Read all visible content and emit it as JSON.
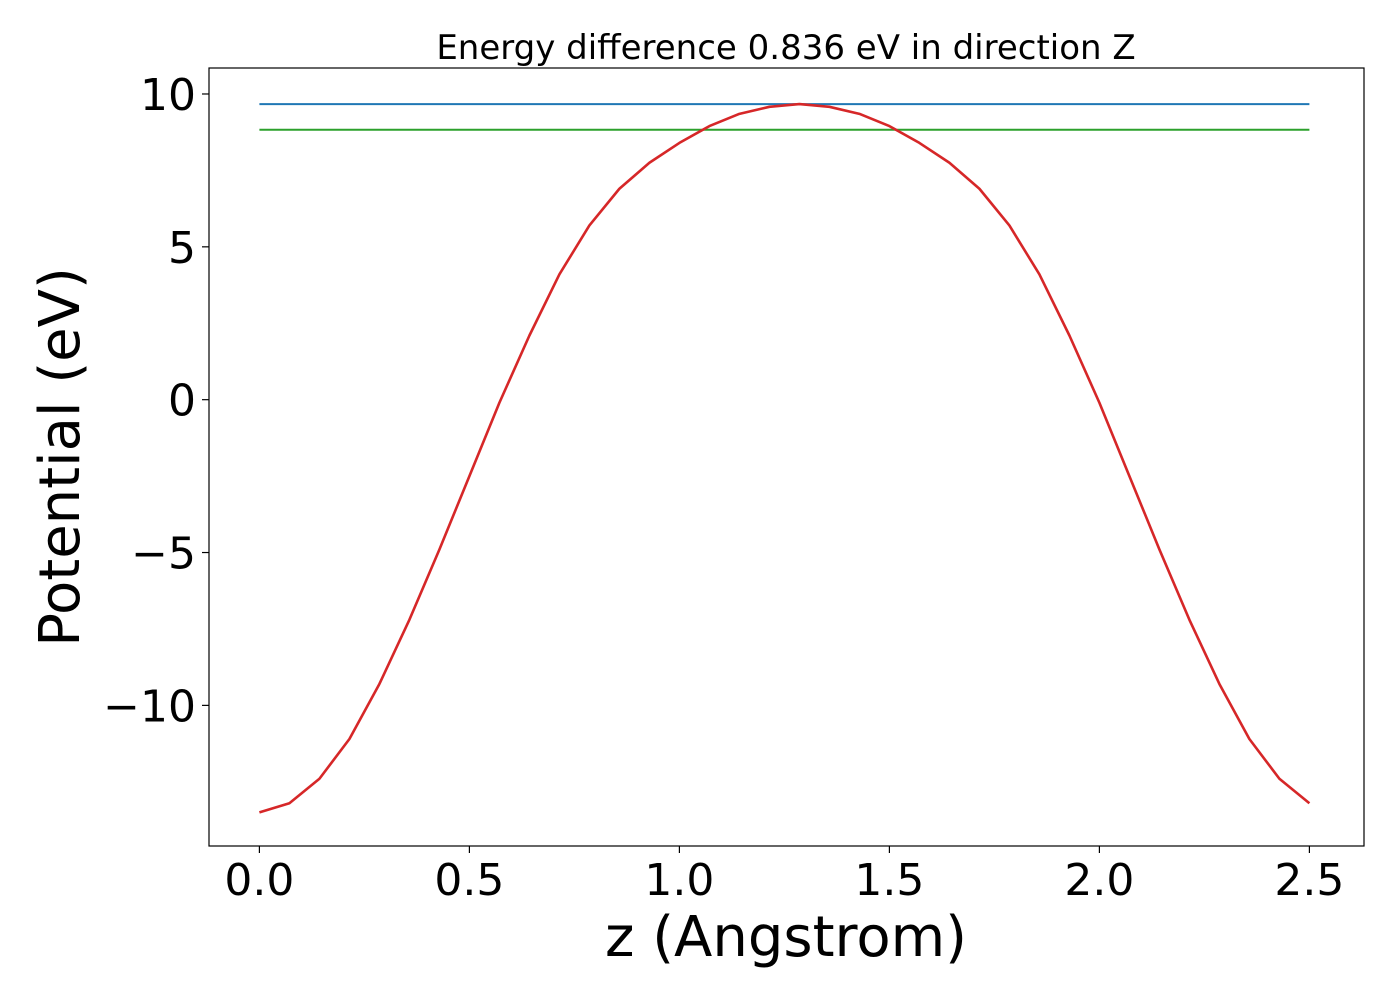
{
  "chart_data": {
    "type": "line",
    "title": "Energy difference 0.836 eV in direction Z",
    "xlabel": "z (Angstrom)",
    "ylabel": "Potential (eV)",
    "xlim": [
      -0.12,
      2.63
    ],
    "ylim": [
      -14.6,
      10.85
    ],
    "grid": false,
    "legend": "none",
    "xticks": [
      0.0,
      0.5,
      1.0,
      1.5,
      2.0,
      2.5
    ],
    "xtick_labels": [
      "0.0",
      "0.5",
      "1.0",
      "1.5",
      "2.0",
      "2.5"
    ],
    "yticks": [
      -10,
      -5,
      0,
      5,
      10
    ],
    "ytick_labels": [
      "−10",
      "−5",
      "0",
      "5",
      "10"
    ],
    "series": [
      {
        "color": "#1f77b4",
        "x": [
          0.0,
          2.5
        ],
        "y": [
          9.67,
          9.67
        ]
      },
      {
        "color": "#2ca02c",
        "x": [
          0.0,
          2.5
        ],
        "y": [
          8.83,
          8.83
        ]
      },
      {
        "color": "#d62728",
        "x": [
          0.0,
          0.0714,
          0.1429,
          0.2143,
          0.2857,
          0.3571,
          0.4286,
          0.5,
          0.5714,
          0.6429,
          0.7143,
          0.7857,
          0.8571,
          0.9286,
          1.0,
          1.0714,
          1.1429,
          1.2143,
          1.2857,
          1.3571,
          1.4286,
          1.5,
          1.5714,
          1.6429,
          1.7143,
          1.7857,
          1.8571,
          1.9286,
          2.0,
          2.0714,
          2.1429,
          2.2143,
          2.2857,
          2.3571,
          2.4286,
          2.5
        ],
        "y": [
          -13.5,
          -13.2,
          -12.4,
          -11.1,
          -9.3,
          -7.2,
          -4.9,
          -2.5,
          -0.1,
          2.1,
          4.1,
          5.7,
          6.9,
          7.75,
          8.4,
          8.95,
          9.35,
          9.58,
          9.67,
          9.58,
          9.35,
          8.95,
          8.4,
          7.75,
          6.9,
          5.7,
          4.1,
          2.1,
          -0.1,
          -2.5,
          -4.9,
          -7.2,
          -9.3,
          -11.1,
          -12.4,
          -13.2
        ]
      }
    ]
  }
}
